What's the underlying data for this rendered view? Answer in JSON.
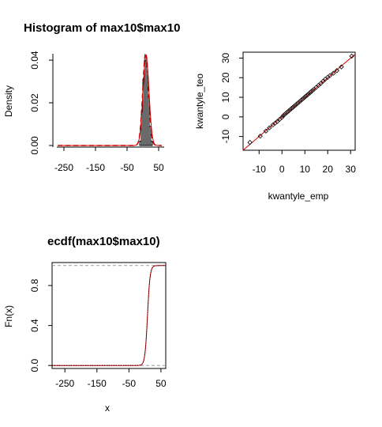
{
  "chart_data": [
    {
      "type": "histogram",
      "title": "Histogram of max10$max10",
      "xlabel": "",
      "ylabel": "Density",
      "xlim": [
        -270,
        60
      ],
      "ylim": [
        0,
        0.043
      ],
      "xticks": [
        -250,
        -150,
        -50,
        50
      ],
      "yticks": [
        0.0,
        0.02,
        0.04
      ],
      "ytick_labels": [
        "0.00",
        "0.02",
        "0.04"
      ],
      "bins": [
        {
          "x0": -10,
          "x1": -5,
          "density": 0.002
        },
        {
          "x0": -5,
          "x1": 0,
          "density": 0.016
        },
        {
          "x0": 0,
          "x1": 5,
          "density": 0.031
        },
        {
          "x0": 5,
          "x1": 10,
          "density": 0.04
        },
        {
          "x0": 10,
          "x1": 15,
          "density": 0.037
        },
        {
          "x0": 15,
          "x1": 20,
          "density": 0.023
        },
        {
          "x0": 20,
          "x1": 25,
          "density": 0.009
        },
        {
          "x0": 25,
          "x1": 30,
          "density": 0.002
        }
      ],
      "fitted_density_color": "#cc0000",
      "kde_color": "#cc0000",
      "bar_fill": "#d3d3d3"
    },
    {
      "type": "scatter",
      "title": "",
      "xlabel": "kwantyle_emp",
      "ylabel": "kwantyle_teo",
      "xlim": [
        -17,
        32
      ],
      "ylim": [
        -17,
        33
      ],
      "xticks": [
        -10,
        0,
        10,
        20,
        30
      ],
      "yticks": [
        -10,
        0,
        10,
        20,
        30
      ],
      "points": [
        [
          -14,
          -13
        ],
        [
          -9.5,
          -9.8
        ],
        [
          -7,
          -7.2
        ],
        [
          -5.5,
          -5.6
        ],
        [
          -4,
          -4.1
        ],
        [
          -3,
          -3.2
        ],
        [
          -2,
          -2.3
        ],
        [
          -1,
          -1.2
        ],
        [
          0,
          -0.2
        ],
        [
          0.5,
          0.5
        ],
        [
          1,
          1.1
        ],
        [
          1.5,
          1.6
        ],
        [
          2,
          2.1
        ],
        [
          2.5,
          2.6
        ],
        [
          3,
          3.1
        ],
        [
          3.5,
          3.6
        ],
        [
          4,
          4.1
        ],
        [
          4.5,
          4.6
        ],
        [
          5,
          5.1
        ],
        [
          5.5,
          5.6
        ],
        [
          6,
          6.1
        ],
        [
          6.5,
          6.6
        ],
        [
          7,
          7.1
        ],
        [
          7.5,
          7.6
        ],
        [
          8,
          8.1
        ],
        [
          8.5,
          8.6
        ],
        [
          9,
          9.1
        ],
        [
          9.5,
          9.6
        ],
        [
          10,
          10.1
        ],
        [
          10.5,
          10.6
        ],
        [
          11,
          11.1
        ],
        [
          11.5,
          11.6
        ],
        [
          12,
          12.1
        ],
        [
          12.5,
          12.6
        ],
        [
          13,
          13.1
        ],
        [
          13.5,
          13.6
        ],
        [
          14,
          14.1
        ],
        [
          15,
          15.1
        ],
        [
          16,
          16.1
        ],
        [
          17,
          17.1
        ],
        [
          18,
          18.2
        ],
        [
          19,
          19.3
        ],
        [
          20,
          20.2
        ],
        [
          21,
          21.1
        ],
        [
          22.5,
          22.3
        ],
        [
          24,
          23.6
        ],
        [
          26,
          25.5
        ],
        [
          30.5,
          31
        ]
      ],
      "reference_line": {
        "from": [
          -17,
          -17
        ],
        "to": [
          32,
          32
        ],
        "color": "#cc0000"
      }
    },
    {
      "type": "line",
      "title": "ecdf(max10$max10)",
      "xlabel": "x",
      "ylabel": "Fn(x)",
      "xlim": [
        -290,
        65
      ],
      "ylim": [
        -0.03,
        1.03
      ],
      "xticks": [
        -250,
        -150,
        -50,
        50
      ],
      "yticks": [
        0.0,
        0.4,
        0.8
      ],
      "ytick_labels": [
        "0.0",
        "0.4",
        "0.8"
      ],
      "ecdf_center": 8,
      "ecdf_scale": 4,
      "ecdf_range": [
        -25,
        40
      ],
      "ecdf_color": "#000000",
      "fitted_cdf_color": "#cc0000",
      "hlines": [
        0,
        1
      ]
    }
  ]
}
